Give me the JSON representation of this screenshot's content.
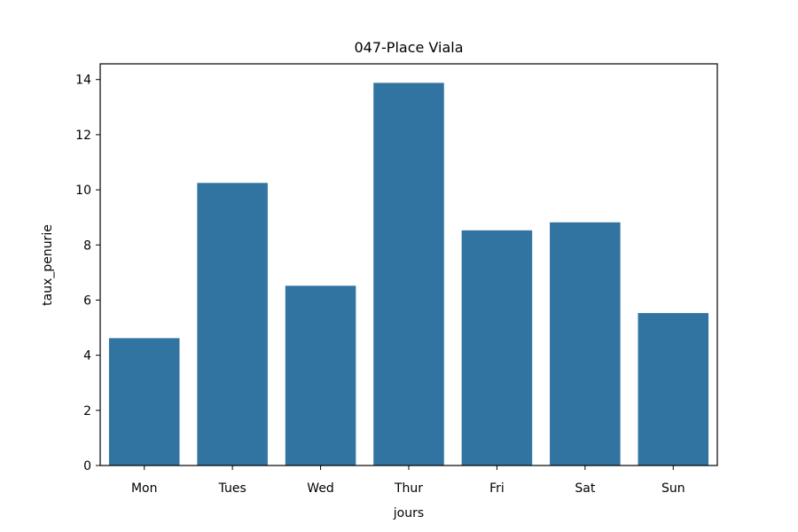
{
  "chart_data": {
    "type": "bar",
    "title": "047-Place Viala",
    "xlabel": "jours",
    "ylabel": "taux_penurie",
    "categories": [
      "Mon",
      "Tues",
      "Wed",
      "Thur",
      "Fri",
      "Sat",
      "Sun"
    ],
    "values": [
      4.62,
      10.25,
      6.52,
      13.88,
      8.53,
      8.82,
      5.53
    ],
    "ylim": [
      0,
      14.57
    ],
    "yticks": [
      0,
      2,
      4,
      6,
      8,
      10,
      12,
      14
    ],
    "grid": false,
    "legend": "none",
    "bar_color": "#3274a1"
  }
}
